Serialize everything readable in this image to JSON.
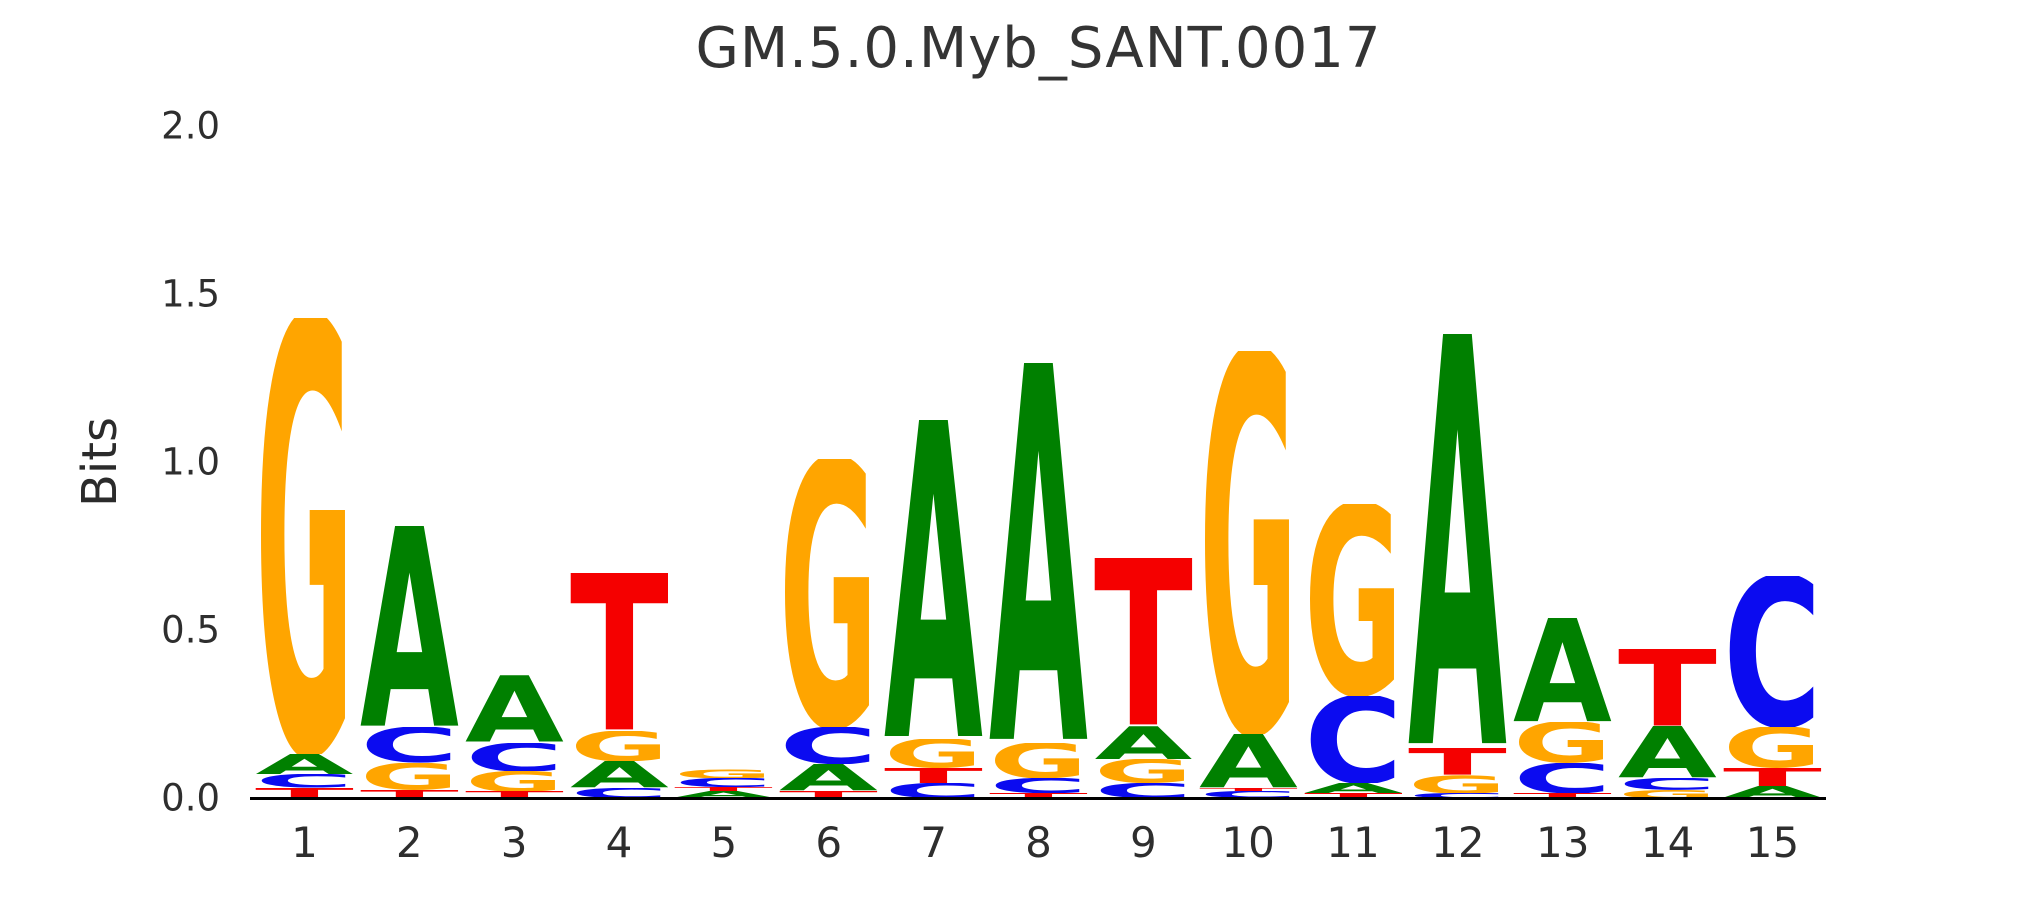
{
  "chart_data": {
    "type": "sequence_logo",
    "title": "GM.5.0.Myb_SANT.0017",
    "ylabel": "Bits",
    "xlabel": "",
    "ylim": [
      0,
      2.0
    ],
    "yticks": [
      "0.0",
      "0.5",
      "1.0",
      "1.5",
      "2.0"
    ],
    "grid": false,
    "legend": "none",
    "letter_colors": {
      "A": "#008000",
      "C": "#0B0BF0",
      "G": "#FFA500",
      "T": "#F50000"
    },
    "columns": [
      {
        "position": "1",
        "stack": [
          {
            "base": "T",
            "bits": 0.03
          },
          {
            "base": "C",
            "bits": 0.04
          },
          {
            "base": "A",
            "bits": 0.06
          },
          {
            "base": "G",
            "bits": 1.3
          }
        ]
      },
      {
        "position": "2",
        "stack": [
          {
            "base": "T",
            "bits": 0.025
          },
          {
            "base": "G",
            "bits": 0.08
          },
          {
            "base": "C",
            "bits": 0.105
          },
          {
            "base": "A",
            "bits": 0.6
          }
        ]
      },
      {
        "position": "3",
        "stack": [
          {
            "base": "T",
            "bits": 0.02
          },
          {
            "base": "G",
            "bits": 0.06
          },
          {
            "base": "C",
            "bits": 0.085
          },
          {
            "base": "A",
            "bits": 0.2
          }
        ]
      },
      {
        "position": "4",
        "stack": [
          {
            "base": "C",
            "bits": 0.03
          },
          {
            "base": "A",
            "bits": 0.08
          },
          {
            "base": "G",
            "bits": 0.09
          },
          {
            "base": "T",
            "bits": 0.47
          }
        ]
      },
      {
        "position": "5",
        "stack": [
          {
            "base": "A",
            "bits": 0.02
          },
          {
            "base": "T",
            "bits": 0.012
          },
          {
            "base": "C",
            "bits": 0.027
          },
          {
            "base": "G",
            "bits": 0.028
          }
        ]
      },
      {
        "position": "6",
        "stack": [
          {
            "base": "T",
            "bits": 0.02
          },
          {
            "base": "A",
            "bits": 0.08
          },
          {
            "base": "C",
            "bits": 0.11
          },
          {
            "base": "G",
            "bits": 0.8
          }
        ]
      },
      {
        "position": "7",
        "stack": [
          {
            "base": "C",
            "bits": 0.045
          },
          {
            "base": "T",
            "bits": 0.045
          },
          {
            "base": "G",
            "bits": 0.085
          },
          {
            "base": "A",
            "bits": 0.95
          }
        ]
      },
      {
        "position": "8",
        "stack": [
          {
            "base": "T",
            "bits": 0.015
          },
          {
            "base": "C",
            "bits": 0.045
          },
          {
            "base": "G",
            "bits": 0.105
          },
          {
            "base": "A",
            "bits": 1.13
          }
        ]
      },
      {
        "position": "9",
        "stack": [
          {
            "base": "C",
            "bits": 0.045
          },
          {
            "base": "G",
            "bits": 0.07
          },
          {
            "base": "A",
            "bits": 0.1
          },
          {
            "base": "T",
            "bits": 0.5
          }
        ]
      },
      {
        "position": "10",
        "stack": [
          {
            "base": "C",
            "bits": 0.02
          },
          {
            "base": "T",
            "bits": 0.01
          },
          {
            "base": "A",
            "bits": 0.16
          },
          {
            "base": "G",
            "bits": 1.14
          }
        ]
      },
      {
        "position": "11",
        "stack": [
          {
            "base": "T",
            "bits": 0.015
          },
          {
            "base": "A",
            "bits": 0.03
          },
          {
            "base": "C",
            "bits": 0.26
          },
          {
            "base": "G",
            "bits": 0.57
          }
        ]
      },
      {
        "position": "12",
        "stack": [
          {
            "base": "C",
            "bits": 0.015
          },
          {
            "base": "G",
            "bits": 0.055
          },
          {
            "base": "T",
            "bits": 0.08
          },
          {
            "base": "A",
            "bits": 1.23
          }
        ]
      },
      {
        "position": "13",
        "stack": [
          {
            "base": "T",
            "bits": 0.015
          },
          {
            "base": "C",
            "bits": 0.09
          },
          {
            "base": "G",
            "bits": 0.12
          },
          {
            "base": "A",
            "bits": 0.31
          }
        ]
      },
      {
        "position": "14",
        "stack": [
          {
            "base": "G",
            "bits": 0.025
          },
          {
            "base": "C",
            "bits": 0.035
          },
          {
            "base": "A",
            "bits": 0.155
          },
          {
            "base": "T",
            "bits": 0.23
          }
        ]
      },
      {
        "position": "15",
        "stack": [
          {
            "base": "A",
            "bits": 0.035
          },
          {
            "base": "T",
            "bits": 0.055
          },
          {
            "base": "G",
            "bits": 0.12
          },
          {
            "base": "C",
            "bits": 0.45
          }
        ]
      }
    ]
  }
}
